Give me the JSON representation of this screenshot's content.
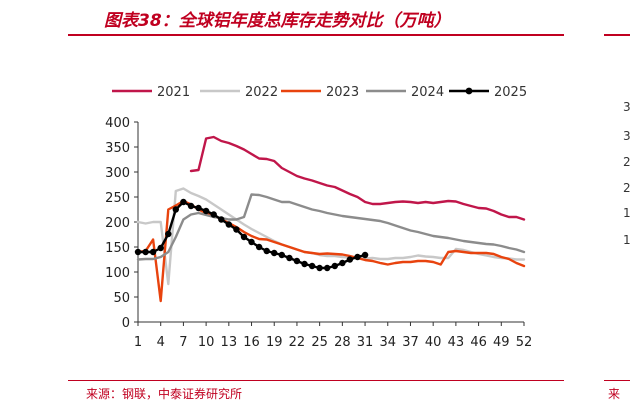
{
  "figure": {
    "title": "图表38：全球铝年度总库存走势对比（万吨）",
    "source": "来源：钢联，中泰证券研究所",
    "source_partial": "来",
    "partial_ticks": [
      "3",
      "3",
      "2",
      "2",
      "1",
      "1"
    ]
  },
  "colors": {
    "accent": "#c00020",
    "s2021": "#c0164a",
    "s2022": "#c8c8c8",
    "s2023": "#e8430e",
    "s2024": "#8c8c8c",
    "s2025": "#000000"
  },
  "chart_data": {
    "type": "line",
    "title": "",
    "xlabel": "",
    "ylabel": "",
    "xlim": [
      1,
      52
    ],
    "ylim": [
      0,
      400
    ],
    "x_ticks": [
      1,
      4,
      7,
      10,
      13,
      16,
      19,
      22,
      25,
      28,
      31,
      34,
      37,
      40,
      43,
      46,
      49,
      52
    ],
    "y_ticks": [
      0,
      50,
      100,
      150,
      200,
      250,
      300,
      350,
      400
    ],
    "grid": false,
    "legend_position": "top",
    "series": [
      {
        "name": "2021",
        "color": "#c0164a",
        "markers": false,
        "points": [
          [
            8,
            302
          ],
          [
            9,
            304
          ],
          [
            10,
            367
          ],
          [
            11,
            370
          ],
          [
            12,
            362
          ],
          [
            13,
            358
          ],
          [
            14,
            352
          ],
          [
            15,
            345
          ],
          [
            16,
            336
          ],
          [
            17,
            327
          ],
          [
            18,
            326
          ],
          [
            19,
            322
          ],
          [
            20,
            308
          ],
          [
            21,
            300
          ],
          [
            22,
            292
          ],
          [
            23,
            287
          ],
          [
            24,
            283
          ],
          [
            25,
            278
          ],
          [
            26,
            273
          ],
          [
            27,
            270
          ],
          [
            28,
            263
          ],
          [
            29,
            256
          ],
          [
            30,
            250
          ],
          [
            31,
            240
          ],
          [
            32,
            236
          ],
          [
            33,
            236
          ],
          [
            34,
            238
          ],
          [
            35,
            240
          ],
          [
            36,
            241
          ],
          [
            37,
            240
          ],
          [
            38,
            238
          ],
          [
            39,
            240
          ],
          [
            40,
            238
          ],
          [
            41,
            240
          ],
          [
            42,
            242
          ],
          [
            43,
            241
          ],
          [
            44,
            236
          ],
          [
            45,
            232
          ],
          [
            46,
            228
          ],
          [
            47,
            227
          ],
          [
            48,
            222
          ],
          [
            49,
            215
          ],
          [
            50,
            210
          ],
          [
            51,
            210
          ],
          [
            52,
            205
          ]
        ]
      },
      {
        "name": "2022",
        "color": "#c8c8c8",
        "markers": false,
        "points": [
          [
            1,
            200
          ],
          [
            2,
            197
          ],
          [
            3,
            200
          ],
          [
            4,
            200
          ],
          [
            5,
            76
          ],
          [
            6,
            262
          ],
          [
            7,
            267
          ],
          [
            8,
            258
          ],
          [
            9,
            252
          ],
          [
            10,
            245
          ],
          [
            11,
            235
          ],
          [
            12,
            225
          ],
          [
            13,
            215
          ],
          [
            14,
            205
          ],
          [
            15,
            195
          ],
          [
            16,
            186
          ],
          [
            17,
            178
          ],
          [
            18,
            170
          ],
          [
            19,
            162
          ],
          [
            20,
            155
          ],
          [
            21,
            150
          ],
          [
            22,
            145
          ],
          [
            23,
            140
          ],
          [
            24,
            138
          ],
          [
            25,
            134
          ],
          [
            26,
            132
          ],
          [
            27,
            132
          ],
          [
            28,
            130
          ],
          [
            29,
            129
          ],
          [
            30,
            129
          ],
          [
            31,
            127
          ],
          [
            32,
            128
          ],
          [
            33,
            126
          ],
          [
            34,
            126
          ],
          [
            35,
            128
          ],
          [
            36,
            128
          ],
          [
            37,
            130
          ],
          [
            38,
            133
          ],
          [
            39,
            131
          ],
          [
            40,
            130
          ],
          [
            41,
            128
          ],
          [
            42,
            128
          ],
          [
            43,
            146
          ],
          [
            44,
            144
          ],
          [
            45,
            140
          ],
          [
            46,
            136
          ],
          [
            47,
            133
          ],
          [
            48,
            130
          ],
          [
            49,
            128
          ],
          [
            50,
            127
          ],
          [
            51,
            125
          ],
          [
            52,
            125
          ]
        ]
      },
      {
        "name": "2023",
        "color": "#e8430e",
        "markers": false,
        "points": [
          [
            1,
            140
          ],
          [
            2,
            142
          ],
          [
            3,
            165
          ],
          [
            4,
            42
          ],
          [
            5,
            225
          ],
          [
            6,
            233
          ],
          [
            7,
            242
          ],
          [
            8,
            235
          ],
          [
            9,
            225
          ],
          [
            10,
            218
          ],
          [
            11,
            213
          ],
          [
            12,
            205
          ],
          [
            13,
            198
          ],
          [
            14,
            190
          ],
          [
            15,
            180
          ],
          [
            16,
            172
          ],
          [
            17,
            166
          ],
          [
            18,
            165
          ],
          [
            19,
            160
          ],
          [
            20,
            155
          ],
          [
            21,
            150
          ],
          [
            22,
            145
          ],
          [
            23,
            140
          ],
          [
            24,
            138
          ],
          [
            25,
            136
          ],
          [
            26,
            137
          ],
          [
            27,
            136
          ],
          [
            28,
            135
          ],
          [
            29,
            132
          ],
          [
            30,
            128
          ],
          [
            31,
            124
          ],
          [
            32,
            122
          ],
          [
            33,
            118
          ],
          [
            34,
            115
          ],
          [
            35,
            118
          ],
          [
            36,
            120
          ],
          [
            37,
            120
          ],
          [
            38,
            122
          ],
          [
            39,
            122
          ],
          [
            40,
            120
          ],
          [
            41,
            115
          ],
          [
            42,
            140
          ],
          [
            43,
            142
          ],
          [
            44,
            140
          ],
          [
            45,
            138
          ],
          [
            46,
            138
          ],
          [
            47,
            138
          ],
          [
            48,
            136
          ],
          [
            49,
            130
          ],
          [
            50,
            126
          ],
          [
            51,
            118
          ],
          [
            52,
            112
          ]
        ]
      },
      {
        "name": "2024",
        "color": "#8c8c8c",
        "markers": false,
        "points": [
          [
            1,
            125
          ],
          [
            2,
            126
          ],
          [
            3,
            126
          ],
          [
            4,
            130
          ],
          [
            5,
            140
          ],
          [
            6,
            170
          ],
          [
            7,
            205
          ],
          [
            8,
            215
          ],
          [
            9,
            218
          ],
          [
            10,
            214
          ],
          [
            11,
            210
          ],
          [
            12,
            208
          ],
          [
            13,
            205
          ],
          [
            14,
            205
          ],
          [
            15,
            210
          ],
          [
            16,
            255
          ],
          [
            17,
            254
          ],
          [
            18,
            250
          ],
          [
            19,
            245
          ],
          [
            20,
            240
          ],
          [
            21,
            240
          ],
          [
            22,
            235
          ],
          [
            23,
            230
          ],
          [
            24,
            225
          ],
          [
            25,
            222
          ],
          [
            26,
            218
          ],
          [
            27,
            215
          ],
          [
            28,
            212
          ],
          [
            29,
            210
          ],
          [
            30,
            208
          ],
          [
            31,
            206
          ],
          [
            32,
            204
          ],
          [
            33,
            202
          ],
          [
            34,
            198
          ],
          [
            35,
            193
          ],
          [
            36,
            188
          ],
          [
            37,
            183
          ],
          [
            38,
            180
          ],
          [
            39,
            176
          ],
          [
            40,
            172
          ],
          [
            41,
            170
          ],
          [
            42,
            168
          ],
          [
            43,
            165
          ],
          [
            44,
            162
          ],
          [
            45,
            160
          ],
          [
            46,
            158
          ],
          [
            47,
            156
          ],
          [
            48,
            155
          ],
          [
            49,
            152
          ],
          [
            50,
            148
          ],
          [
            51,
            145
          ],
          [
            52,
            140
          ]
        ]
      },
      {
        "name": "2025",
        "color": "#000000",
        "markers": true,
        "points": [
          [
            1,
            140
          ],
          [
            2,
            140
          ],
          [
            3,
            140
          ],
          [
            4,
            148
          ],
          [
            5,
            176
          ],
          [
            6,
            225
          ],
          [
            7,
            240
          ],
          [
            8,
            232
          ],
          [
            9,
            228
          ],
          [
            10,
            222
          ],
          [
            11,
            215
          ],
          [
            12,
            205
          ],
          [
            13,
            195
          ],
          [
            14,
            185
          ],
          [
            15,
            170
          ],
          [
            16,
            160
          ],
          [
            17,
            150
          ],
          [
            18,
            142
          ],
          [
            19,
            138
          ],
          [
            20,
            134
          ],
          [
            21,
            128
          ],
          [
            22,
            122
          ],
          [
            23,
            116
          ],
          [
            24,
            112
          ],
          [
            25,
            108
          ],
          [
            26,
            108
          ],
          [
            27,
            112
          ],
          [
            28,
            118
          ],
          [
            29,
            125
          ],
          [
            30,
            130
          ],
          [
            31,
            134
          ]
        ]
      }
    ]
  }
}
